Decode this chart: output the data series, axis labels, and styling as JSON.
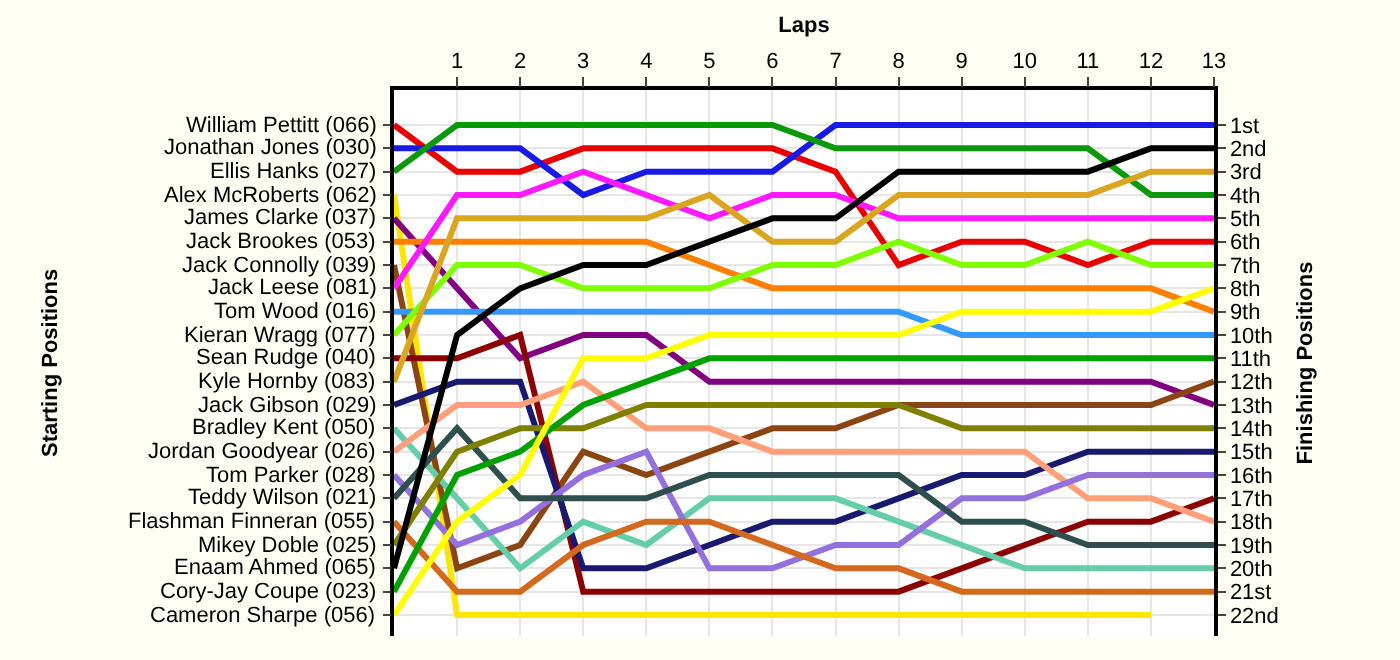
{
  "chart_data": {
    "type": "line",
    "xlabel": "Laps",
    "annotations": [
      "Starting Positions"
    ],
    "y2label": "Finishing Positions",
    "x": [
      0,
      1,
      2,
      3,
      4,
      5,
      6,
      7,
      8,
      9,
      10,
      11,
      12,
      13
    ],
    "xlim": [
      0,
      13
    ],
    "xticks": [
      1,
      2,
      3,
      4,
      5,
      6,
      7,
      8,
      9,
      10,
      11,
      12,
      13
    ],
    "y2lim": [
      22.9,
      -0.5
    ],
    "y2ticks": [
      {
        "value": 1,
        "label": "1st"
      },
      {
        "value": 2,
        "label": "2nd"
      },
      {
        "value": 3,
        "label": "3rd"
      },
      {
        "value": 4,
        "label": "4th"
      },
      {
        "value": 5,
        "label": "5th"
      },
      {
        "value": 6,
        "label": "6th"
      },
      {
        "value": 7,
        "label": "7th"
      },
      {
        "value": 8,
        "label": "8th"
      },
      {
        "value": 9,
        "label": "9th"
      },
      {
        "value": 10,
        "label": "10th"
      },
      {
        "value": 11,
        "label": "11th"
      },
      {
        "value": 12,
        "label": "12th"
      },
      {
        "value": 13,
        "label": "13th"
      },
      {
        "value": 14,
        "label": "14th"
      },
      {
        "value": 15,
        "label": "15th"
      },
      {
        "value": 16,
        "label": "16th"
      },
      {
        "value": 17,
        "label": "17th"
      },
      {
        "value": 18,
        "label": "18th"
      },
      {
        "value": 19,
        "label": "19th"
      },
      {
        "value": 20,
        "label": "20th"
      },
      {
        "value": 21,
        "label": "21st"
      },
      {
        "value": 22,
        "label": "22nd"
      }
    ],
    "grid": true,
    "legend": false,
    "marker": "none",
    "line_style": "solid",
    "series": [
      {
        "name": "William Pettitt (066)",
        "axis": "y2",
        "color": "#e60000",
        "values": [
          1,
          3,
          3,
          2,
          2,
          2,
          2,
          3,
          7,
          6,
          6,
          7,
          6,
          6
        ]
      },
      {
        "name": "Jonathan Jones (030)",
        "axis": "y2",
        "color": "#1a1ae6",
        "values": [
          2,
          2,
          2,
          4,
          3,
          3,
          3,
          1,
          1,
          1,
          1,
          1,
          1,
          1
        ]
      },
      {
        "name": "Ellis Hanks (027)",
        "axis": "y2",
        "color": "#0a990a",
        "values": [
          3,
          1,
          1,
          1,
          1,
          1,
          1,
          2,
          2,
          2,
          2,
          2,
          4,
          4
        ]
      },
      {
        "name": "Alex McRoberts (062)",
        "axis": "y2",
        "color": "#ffe600",
        "values": [
          4,
          22,
          22,
          22,
          22,
          22,
          22,
          22,
          22,
          22,
          22,
          22,
          22,
          null
        ]
      },
      {
        "name": "James Clarke (037)",
        "axis": "y2",
        "color": "#800080",
        "values": [
          5,
          8,
          11,
          10,
          10,
          12,
          12,
          12,
          12,
          12,
          12,
          12,
          12,
          13
        ]
      },
      {
        "name": "Jack Brookes (053)",
        "axis": "y2",
        "color": "#ff8000",
        "values": [
          6,
          6,
          6,
          6,
          6,
          7,
          8,
          8,
          8,
          8,
          8,
          8,
          8,
          9
        ]
      },
      {
        "name": "Jack Connolly (039)",
        "axis": "y2",
        "color": "#8b4513",
        "values": [
          7,
          20,
          19,
          15,
          16,
          15,
          14,
          14,
          13,
          13,
          13,
          13,
          13,
          12
        ]
      },
      {
        "name": "Jack Leese (081)",
        "axis": "y2",
        "color": "#ff1aff",
        "values": [
          8,
          4,
          4,
          3,
          4,
          5,
          4,
          4,
          5,
          5,
          5,
          5,
          5,
          5
        ]
      },
      {
        "name": "Tom Wood (016)",
        "axis": "y2",
        "color": "#3399ff",
        "values": [
          9,
          9,
          9,
          9,
          9,
          9,
          9,
          9,
          9,
          10,
          10,
          10,
          10,
          10
        ]
      },
      {
        "name": "Kieran Wragg (077)",
        "axis": "y2",
        "color": "#80ff00",
        "values": [
          10,
          7,
          7,
          8,
          8,
          8,
          7,
          7,
          6,
          7,
          7,
          6,
          7,
          7
        ]
      },
      {
        "name": "Sean Rudge (040)",
        "axis": "y2",
        "color": "#8b0000",
        "values": [
          11,
          11,
          10,
          21,
          21,
          21,
          21,
          21,
          21,
          20,
          19,
          18,
          18,
          17
        ]
      },
      {
        "name": "Kyle Hornby (083)",
        "axis": "y2",
        "color": "#daa520",
        "values": [
          12,
          5,
          5,
          5,
          5,
          4,
          6,
          6,
          4,
          4,
          4,
          4,
          3,
          3
        ]
      },
      {
        "name": "Jack Gibson (029)",
        "axis": "y2",
        "color": "#191970",
        "values": [
          13,
          12,
          12,
          20,
          20,
          19,
          18,
          18,
          17,
          16,
          16,
          15,
          15,
          15
        ]
      },
      {
        "name": "Bradley Kent (050)",
        "axis": "y2",
        "color": "#66cdaa",
        "values": [
          14,
          17,
          20,
          18,
          19,
          17,
          17,
          17,
          18,
          19,
          20,
          20,
          20,
          20
        ]
      },
      {
        "name": "Jordan Goodyear (026)",
        "axis": "y2",
        "color": "#ffa07a",
        "values": [
          15,
          13,
          13,
          12,
          14,
          14,
          15,
          15,
          15,
          15,
          15,
          17,
          17,
          18
        ]
      },
      {
        "name": "Tom Parker (028)",
        "axis": "y2",
        "color": "#9370db",
        "values": [
          16,
          19,
          18,
          16,
          15,
          20,
          20,
          19,
          19,
          17,
          17,
          16,
          16,
          16
        ]
      },
      {
        "name": "Teddy Wilson (021)",
        "axis": "y2",
        "color": "#2f4f4f",
        "values": [
          17,
          14,
          17,
          17,
          17,
          16,
          16,
          16,
          16,
          18,
          18,
          19,
          19,
          19
        ]
      },
      {
        "name": "Flashman Finneran (055)",
        "axis": "y2",
        "color": "#d2691e",
        "values": [
          18,
          21,
          21,
          19,
          18,
          18,
          19,
          20,
          20,
          21,
          21,
          21,
          21,
          21
        ]
      },
      {
        "name": "Mikey Doble (025)",
        "axis": "y2",
        "color": "#808000",
        "values": [
          19,
          15,
          14,
          14,
          13,
          13,
          13,
          13,
          13,
          14,
          14,
          14,
          14,
          14
        ]
      },
      {
        "name": "Enaam Ahmed (065)",
        "axis": "y2",
        "color": "#000000",
        "values": [
          20,
          10,
          8,
          7,
          7,
          6,
          5,
          5,
          3,
          3,
          3,
          3,
          2,
          2
        ]
      },
      {
        "name": "Cory-Jay Coupe (023)",
        "axis": "y2",
        "color": "#00a000",
        "values": [
          21,
          16,
          15,
          13,
          12,
          11,
          11,
          11,
          11,
          11,
          11,
          11,
          11,
          11
        ]
      },
      {
        "name": "Cameron Sharpe (056)",
        "axis": "y2",
        "color": "#ffff00",
        "values": [
          22,
          18,
          16,
          11,
          11,
          10,
          10,
          10,
          10,
          9,
          9,
          9,
          9,
          8
        ]
      }
    ]
  }
}
